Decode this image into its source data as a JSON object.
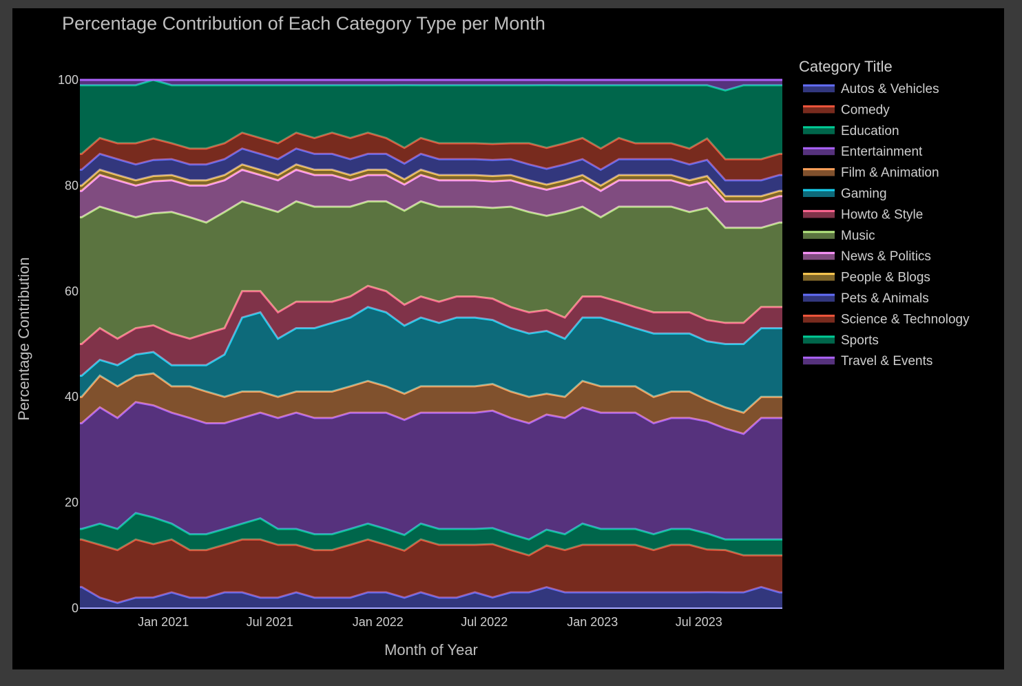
{
  "chart_data": {
    "type": "area",
    "stacked": true,
    "normalized_percent": true,
    "title": "Percentage Contribution of Each Category Type per Month",
    "xlabel": "Month of Year",
    "ylabel": "Percentage Contribution",
    "ylim": [
      0,
      100
    ],
    "xlim": [
      "2020-08-12",
      "2023-11-20"
    ],
    "y_ticks": [
      0,
      20,
      40,
      60,
      80,
      100
    ],
    "x_ticks": [
      {
        "date": "2021-01-01",
        "label": "Jan 2021"
      },
      {
        "date": "2021-07-01",
        "label": "Jul 2021"
      },
      {
        "date": "2022-01-01",
        "label": "Jan 2022"
      },
      {
        "date": "2022-07-01",
        "label": "Jul 2022"
      },
      {
        "date": "2023-01-01",
        "label": "Jan 2023"
      },
      {
        "date": "2023-07-01",
        "label": "Jul 2023"
      }
    ],
    "grid": false,
    "legend_position": "right",
    "legend_title": "Category Title",
    "x": [
      "2020-08-15",
      "2020-09-15",
      "2020-10-15",
      "2020-11-15",
      "2020-12-15",
      "2021-01-15",
      "2021-02-15",
      "2021-03-15",
      "2021-04-15",
      "2021-05-15",
      "2021-06-15",
      "2021-07-15",
      "2021-08-15",
      "2021-09-15",
      "2021-10-15",
      "2021-11-15",
      "2021-12-15",
      "2022-01-15",
      "2022-02-15",
      "2022-03-15",
      "2022-04-15",
      "2022-05-15",
      "2022-06-15",
      "2022-07-15",
      "2022-08-15",
      "2022-09-15",
      "2022-10-15",
      "2022-11-15",
      "2022-12-15",
      "2023-01-15",
      "2023-02-15",
      "2023-03-15",
      "2023-04-15",
      "2023-05-15",
      "2023-06-15",
      "2023-07-15",
      "2023-08-15",
      "2023-09-15",
      "2023-10-15",
      "2023-11-15"
    ],
    "series": [
      {
        "name": "Autos & Vehicles",
        "color": "#636efa",
        "values": [
          4,
          2,
          1,
          2,
          2,
          3,
          2,
          2,
          3,
          3,
          2,
          2,
          3,
          2,
          2,
          2,
          3,
          3,
          2,
          3,
          2,
          2,
          3,
          2,
          3,
          3,
          4,
          3,
          3,
          3,
          3,
          3,
          3,
          3,
          3,
          3,
          3,
          3,
          4,
          3
        ]
      },
      {
        "name": "Comedy",
        "color": "#ef553b",
        "values": [
          9,
          10,
          10,
          11,
          10,
          10,
          9,
          9,
          9,
          10,
          11,
          10,
          9,
          9,
          9,
          10,
          10,
          9,
          9,
          10,
          10,
          10,
          9,
          10,
          8,
          7,
          8,
          8,
          9,
          9,
          9,
          9,
          8,
          9,
          9,
          8,
          8,
          7,
          6,
          7
        ]
      },
      {
        "name": "Education",
        "color": "#00cc96",
        "values": [
          2,
          4,
          4,
          5,
          5,
          3,
          3,
          3,
          3,
          3,
          4,
          3,
          3,
          3,
          3,
          3,
          3,
          3,
          3,
          3,
          3,
          3,
          3,
          3,
          3,
          3,
          3,
          3,
          4,
          3,
          3,
          3,
          3,
          3,
          3,
          3,
          2,
          3,
          3,
          3
        ]
      },
      {
        "name": "Entertainment",
        "color": "#ab63fa",
        "values": [
          20,
          22,
          21,
          21,
          21,
          21,
          22,
          21,
          20,
          20,
          20,
          21,
          22,
          22,
          22,
          22,
          21,
          22,
          22,
          21,
          22,
          22,
          22,
          22,
          22,
          22,
          22,
          22,
          22,
          22,
          22,
          22,
          21,
          21,
          21,
          21,
          21,
          20,
          23,
          23
        ]
      },
      {
        "name": "Film & Animation",
        "color": "#ffa15a",
        "values": [
          5,
          6,
          6,
          5,
          6,
          5,
          6,
          6,
          5,
          5,
          4,
          4,
          4,
          5,
          5,
          5,
          6,
          5,
          5,
          5,
          5,
          5,
          5,
          5,
          5,
          5,
          4,
          4,
          5,
          5,
          5,
          5,
          5,
          5,
          5,
          4,
          4,
          4,
          4,
          4
        ]
      },
      {
        "name": "Gaming",
        "color": "#19d3f3",
        "values": [
          4,
          3,
          4,
          4,
          4,
          4,
          4,
          5,
          8,
          14,
          15,
          11,
          12,
          12,
          13,
          13,
          14,
          14,
          13,
          13,
          12,
          13,
          13,
          12,
          12,
          12,
          12,
          11,
          12,
          13,
          12,
          11,
          12,
          11,
          11,
          11,
          12,
          13,
          13,
          13
        ]
      },
      {
        "name": "Howto & Style",
        "color": "#ff6692",
        "values": [
          6,
          6,
          5,
          5,
          5,
          6,
          5,
          6,
          5,
          5,
          4,
          5,
          5,
          5,
          4,
          4,
          4,
          4,
          4,
          4,
          4,
          4,
          4,
          4,
          4,
          4,
          4,
          4,
          4,
          4,
          4,
          4,
          4,
          4,
          4,
          4,
          4,
          4,
          4,
          4
        ]
      },
      {
        "name": "Music",
        "color": "#b6e880",
        "values": [
          24,
          23,
          24,
          21,
          21,
          23,
          23,
          21,
          22,
          17,
          16,
          19,
          19,
          18,
          18,
          17,
          16,
          17,
          18,
          18,
          18,
          17,
          17,
          17,
          19,
          19,
          18,
          20,
          17,
          15,
          18,
          19,
          20,
          20,
          19,
          21,
          18,
          18,
          15,
          16
        ]
      },
      {
        "name": "News & Politics",
        "color": "#ff97ff",
        "values": [
          5,
          6,
          6,
          6,
          6,
          6,
          6,
          7,
          6,
          6,
          6,
          6,
          6,
          6,
          6,
          5,
          5,
          5,
          5,
          5,
          5,
          5,
          5,
          5,
          5,
          5,
          5,
          5,
          5,
          5,
          5,
          5,
          5,
          5,
          5,
          5,
          5,
          5,
          5,
          5
        ]
      },
      {
        "name": "People & Blogs",
        "color": "#fecb52",
        "values": [
          1,
          1,
          1,
          1,
          1,
          1,
          1,
          1,
          1,
          1,
          1,
          1,
          1,
          1,
          1,
          1,
          1,
          1,
          1,
          1,
          1,
          1,
          1,
          1,
          1,
          1,
          1,
          1,
          1,
          1,
          1,
          1,
          1,
          1,
          1,
          1,
          1,
          1,
          1,
          1
        ]
      },
      {
        "name": "Pets & Animals",
        "color": "#636efa",
        "values": [
          3,
          3,
          3,
          3,
          3,
          3,
          3,
          3,
          3,
          3,
          3,
          3,
          3,
          3,
          3,
          3,
          3,
          3,
          3,
          3,
          3,
          3,
          3,
          3,
          3,
          3,
          3,
          3,
          3,
          3,
          3,
          3,
          3,
          3,
          3,
          3,
          3,
          3,
          3,
          3
        ]
      },
      {
        "name": "Science & Technology",
        "color": "#ef553b",
        "values": [
          3,
          3,
          3,
          4,
          4,
          3,
          3,
          3,
          3,
          3,
          3,
          3,
          3,
          3,
          4,
          4,
          4,
          3,
          3,
          3,
          3,
          3,
          3,
          3,
          3,
          4,
          4,
          4,
          4,
          4,
          4,
          3,
          3,
          3,
          3,
          4,
          4,
          4,
          4,
          4
        ]
      },
      {
        "name": "Sports",
        "color": "#00cc96",
        "values": [
          13,
          10,
          11,
          11,
          11,
          11,
          12,
          12,
          11,
          9,
          10,
          11,
          9,
          10,
          9,
          10,
          9,
          10,
          12,
          10,
          11,
          11,
          11,
          11,
          11,
          11,
          12,
          11,
          10,
          12,
          10,
          11,
          11,
          11,
          12,
          10,
          13,
          14,
          14,
          13
        ]
      },
      {
        "name": "Travel & Events",
        "color": "#ab63fa",
        "values": [
          1,
          1,
          1,
          1,
          0,
          1,
          1,
          1,
          1,
          1,
          1,
          1,
          1,
          1,
          1,
          1,
          1,
          1,
          1,
          1,
          1,
          1,
          1,
          1,
          1,
          1,
          1,
          1,
          1,
          1,
          1,
          1,
          1,
          1,
          1,
          1,
          2,
          1,
          1,
          1
        ]
      }
    ]
  }
}
